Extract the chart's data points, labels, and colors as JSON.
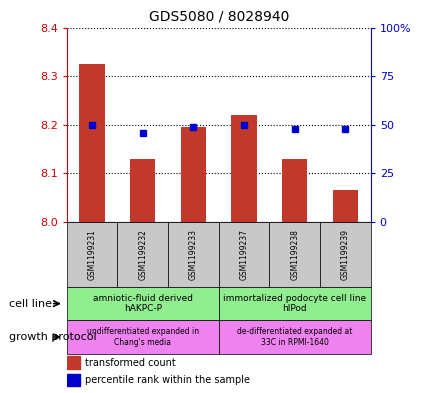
{
  "title": "GDS5080 / 8028940",
  "samples": [
    "GSM1199231",
    "GSM1199232",
    "GSM1199233",
    "GSM1199237",
    "GSM1199238",
    "GSM1199239"
  ],
  "bar_values": [
    8.325,
    8.13,
    8.195,
    8.22,
    8.13,
    8.065
  ],
  "percentile_values": [
    50,
    46,
    49,
    50,
    48,
    48
  ],
  "ylim_left": [
    8.0,
    8.4
  ],
  "ylim_right": [
    0,
    100
  ],
  "yticks_left": [
    8.0,
    8.1,
    8.2,
    8.3,
    8.4
  ],
  "yticks_right": [
    0,
    25,
    50,
    75,
    100
  ],
  "bar_color": "#c0392b",
  "dot_color": "#0000cc",
  "cell_line_label1": "amniotic-fluid derived\nhAKPC-P",
  "cell_line_label2": "immortalized podocyte cell line\nhIPod",
  "growth_label1": "undifferentiated expanded in\nChang's media",
  "growth_label2": "de-differentiated expanded at\n33C in RPMI-1640",
  "legend_bar_label": "transformed count",
  "legend_dot_label": "percentile rank within the sample",
  "left_yaxis_color": "#cc0000",
  "right_yaxis_color": "#0000cc",
  "sample_box_color": "#c8c8c8",
  "cell_line_bg": "#90ee90",
  "growth_bg": "#ee82ee",
  "cell_line_label": "cell line",
  "growth_protocol_label": "growth protocol"
}
